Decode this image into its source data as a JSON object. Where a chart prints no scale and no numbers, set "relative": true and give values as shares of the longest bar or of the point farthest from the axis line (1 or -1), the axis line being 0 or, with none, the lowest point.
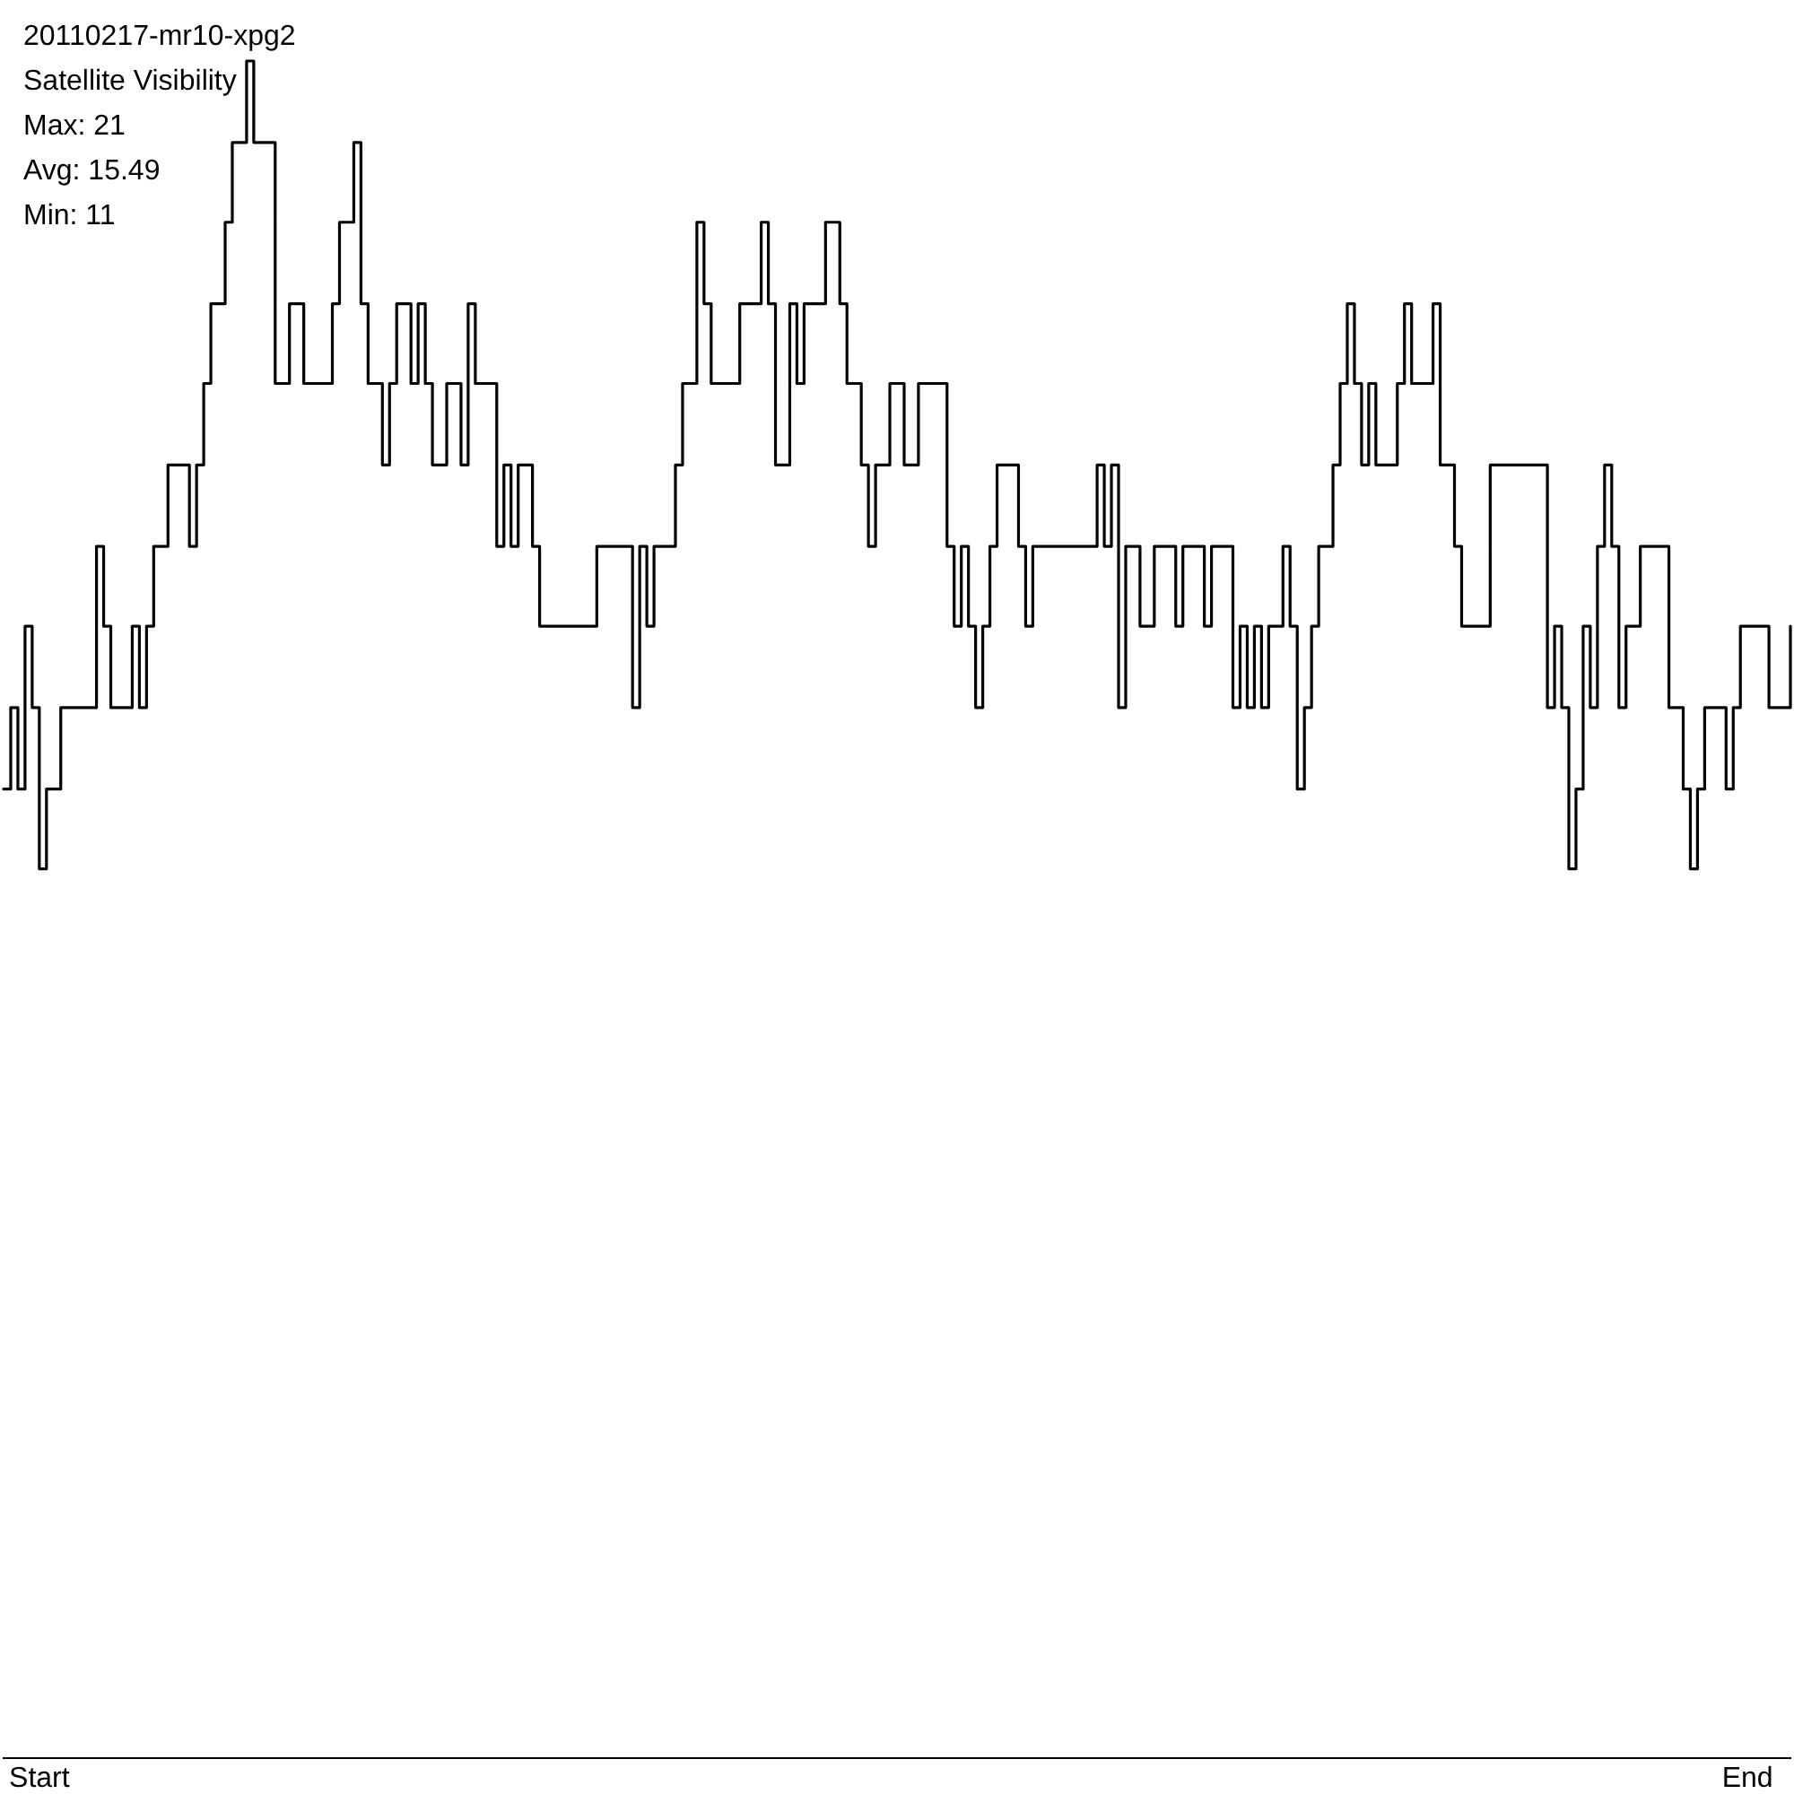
{
  "chart_data": {
    "type": "step",
    "title": "20110217-mr10-xpg2",
    "subtitle": "Satellite Visibility",
    "annotations": [
      "Max: 21",
      "Avg: 15.49",
      "Min: 11"
    ],
    "relative": true,
    "color": "#000000",
    "categories": [
      null,
      null,
      null,
      null,
      null,
      "Start",
      null,
      null,
      null,
      null,
      null,
      null,
      null,
      null,
      null,
      null,
      null,
      null,
      null,
      null,
      null,
      null,
      null,
      null,
      null,
      null,
      null,
      null,
      null,
      null,
      null,
      null,
      null,
      null,
      null,
      null,
      null,
      null,
      null,
      null,
      null,
      null,
      null,
      null,
      null,
      null,
      null,
      null,
      null,
      null,
      null,
      null,
      null,
      null,
      null,
      null,
      null,
      null,
      null,
      null,
      null,
      null,
      null,
      null,
      null,
      null,
      null,
      null,
      null,
      null,
      null,
      null,
      null,
      null,
      null,
      null,
      null,
      null,
      null,
      null,
      null,
      null,
      null,
      null,
      null,
      null,
      null,
      null,
      null,
      null,
      null,
      null,
      null,
      null,
      null,
      null,
      null,
      null,
      null,
      null,
      null,
      null,
      null,
      null,
      null,
      null,
      null,
      null,
      null,
      null,
      null,
      null,
      null,
      null,
      null,
      null,
      null,
      null,
      null,
      null,
      null,
      null,
      null,
      null,
      null,
      null,
      null,
      null,
      null,
      null,
      null,
      null,
      null,
      null,
      null,
      null,
      null,
      null,
      null,
      null,
      null,
      null,
      null,
      null,
      null,
      null,
      null,
      null,
      null,
      null,
      null,
      null,
      null,
      null,
      null,
      null,
      null,
      null,
      null,
      null,
      null,
      null,
      null,
      null,
      null,
      null,
      null,
      null,
      null,
      null,
      null,
      null,
      null,
      null,
      null,
      null,
      null,
      null,
      null,
      null,
      null,
      null,
      null,
      null,
      null,
      null,
      null,
      null,
      null,
      null,
      null,
      null,
      null,
      null,
      null,
      null,
      null,
      null,
      null,
      null,
      null,
      null,
      null,
      null,
      null,
      null,
      null,
      null,
      null,
      null,
      null,
      null,
      null,
      null,
      null,
      null,
      null,
      null,
      null,
      null,
      null,
      null,
      null,
      null,
      null,
      null,
      null,
      null,
      null,
      null,
      null,
      null,
      null,
      null,
      null,
      null,
      null,
      null,
      null,
      null,
      null,
      null,
      null,
      null,
      "End",
      null,
      null,
      null,
      null,
      null,
      null
    ],
    "values": [
      0.571,
      0.619,
      0.571,
      0.667,
      0.619,
      0.524,
      0.571,
      0.571,
      0.619,
      0.619,
      0.619,
      0.619,
      0.619,
      0.714,
      0.667,
      0.619,
      0.619,
      0.619,
      0.667,
      0.619,
      0.667,
      0.714,
      0.714,
      0.762,
      0.762,
      0.762,
      0.714,
      0.762,
      0.81,
      0.857,
      0.857,
      0.905,
      0.952,
      0.952,
      1,
      0.952,
      0.952,
      0.952,
      0.81,
      0.81,
      0.857,
      0.857,
      0.81,
      0.81,
      0.81,
      0.81,
      0.857,
      0.905,
      0.905,
      0.952,
      0.857,
      0.81,
      0.81,
      0.762,
      0.81,
      0.857,
      0.857,
      0.81,
      0.857,
      0.81,
      0.762,
      0.762,
      0.81,
      0.81,
      0.762,
      0.857,
      0.81,
      0.81,
      0.81,
      0.714,
      0.762,
      0.714,
      0.762,
      0.762,
      0.714,
      0.667,
      0.667,
      0.667,
      0.667,
      0.667,
      0.667,
      0.667,
      0.667,
      0.714,
      0.714,
      0.714,
      0.714,
      0.714,
      0.619,
      0.714,
      0.667,
      0.714,
      0.714,
      0.714,
      0.762,
      0.81,
      0.81,
      0.905,
      0.857,
      0.81,
      0.81,
      0.81,
      0.81,
      0.857,
      0.857,
      0.857,
      0.905,
      0.857,
      0.762,
      0.762,
      0.857,
      0.81,
      0.857,
      0.857,
      0.857,
      0.905,
      0.905,
      0.857,
      0.81,
      0.81,
      0.762,
      0.714,
      0.762,
      0.762,
      0.81,
      0.81,
      0.762,
      0.762,
      0.81,
      0.81,
      0.81,
      0.81,
      0.714,
      0.667,
      0.714,
      0.667,
      0.619,
      0.667,
      0.714,
      0.762,
      0.762,
      0.762,
      0.714,
      0.667,
      0.714,
      0.714,
      0.714,
      0.714,
      0.714,
      0.714,
      0.714,
      0.714,
      0.714,
      0.762,
      0.714,
      0.762,
      0.619,
      0.714,
      0.714,
      0.667,
      0.667,
      0.714,
      0.714,
      0.714,
      0.667,
      0.714,
      0.714,
      0.714,
      0.667,
      0.714,
      0.714,
      0.714,
      0.619,
      0.667,
      0.619,
      0.667,
      0.619,
      0.667,
      0.667,
      0.714,
      0.667,
      0.571,
      0.619,
      0.667,
      0.714,
      0.714,
      0.762,
      0.81,
      0.857,
      0.81,
      0.762,
      0.81,
      0.762,
      0.762,
      0.762,
      0.81,
      0.857,
      0.81,
      0.81,
      0.81,
      0.857,
      0.762,
      0.762,
      0.714,
      0.667,
      0.667,
      0.667,
      0.667,
      0.762,
      0.762,
      0.762,
      0.762,
      0.762,
      0.762,
      0.762,
      0.762,
      0.619,
      0.667,
      0.619,
      0.524,
      0.571,
      0.667,
      0.619,
      0.714,
      0.762,
      0.714,
      0.619,
      0.667,
      0.667,
      0.714,
      0.714,
      0.714,
      0.714,
      0.619,
      0.619,
      0.571,
      0.524,
      0.571,
      0.619,
      0.619,
      0.619,
      0.571,
      0.619,
      0.667,
      0.667,
      0.667,
      0.667,
      0.619,
      0.619,
      0.619,
      0.667
    ]
  }
}
